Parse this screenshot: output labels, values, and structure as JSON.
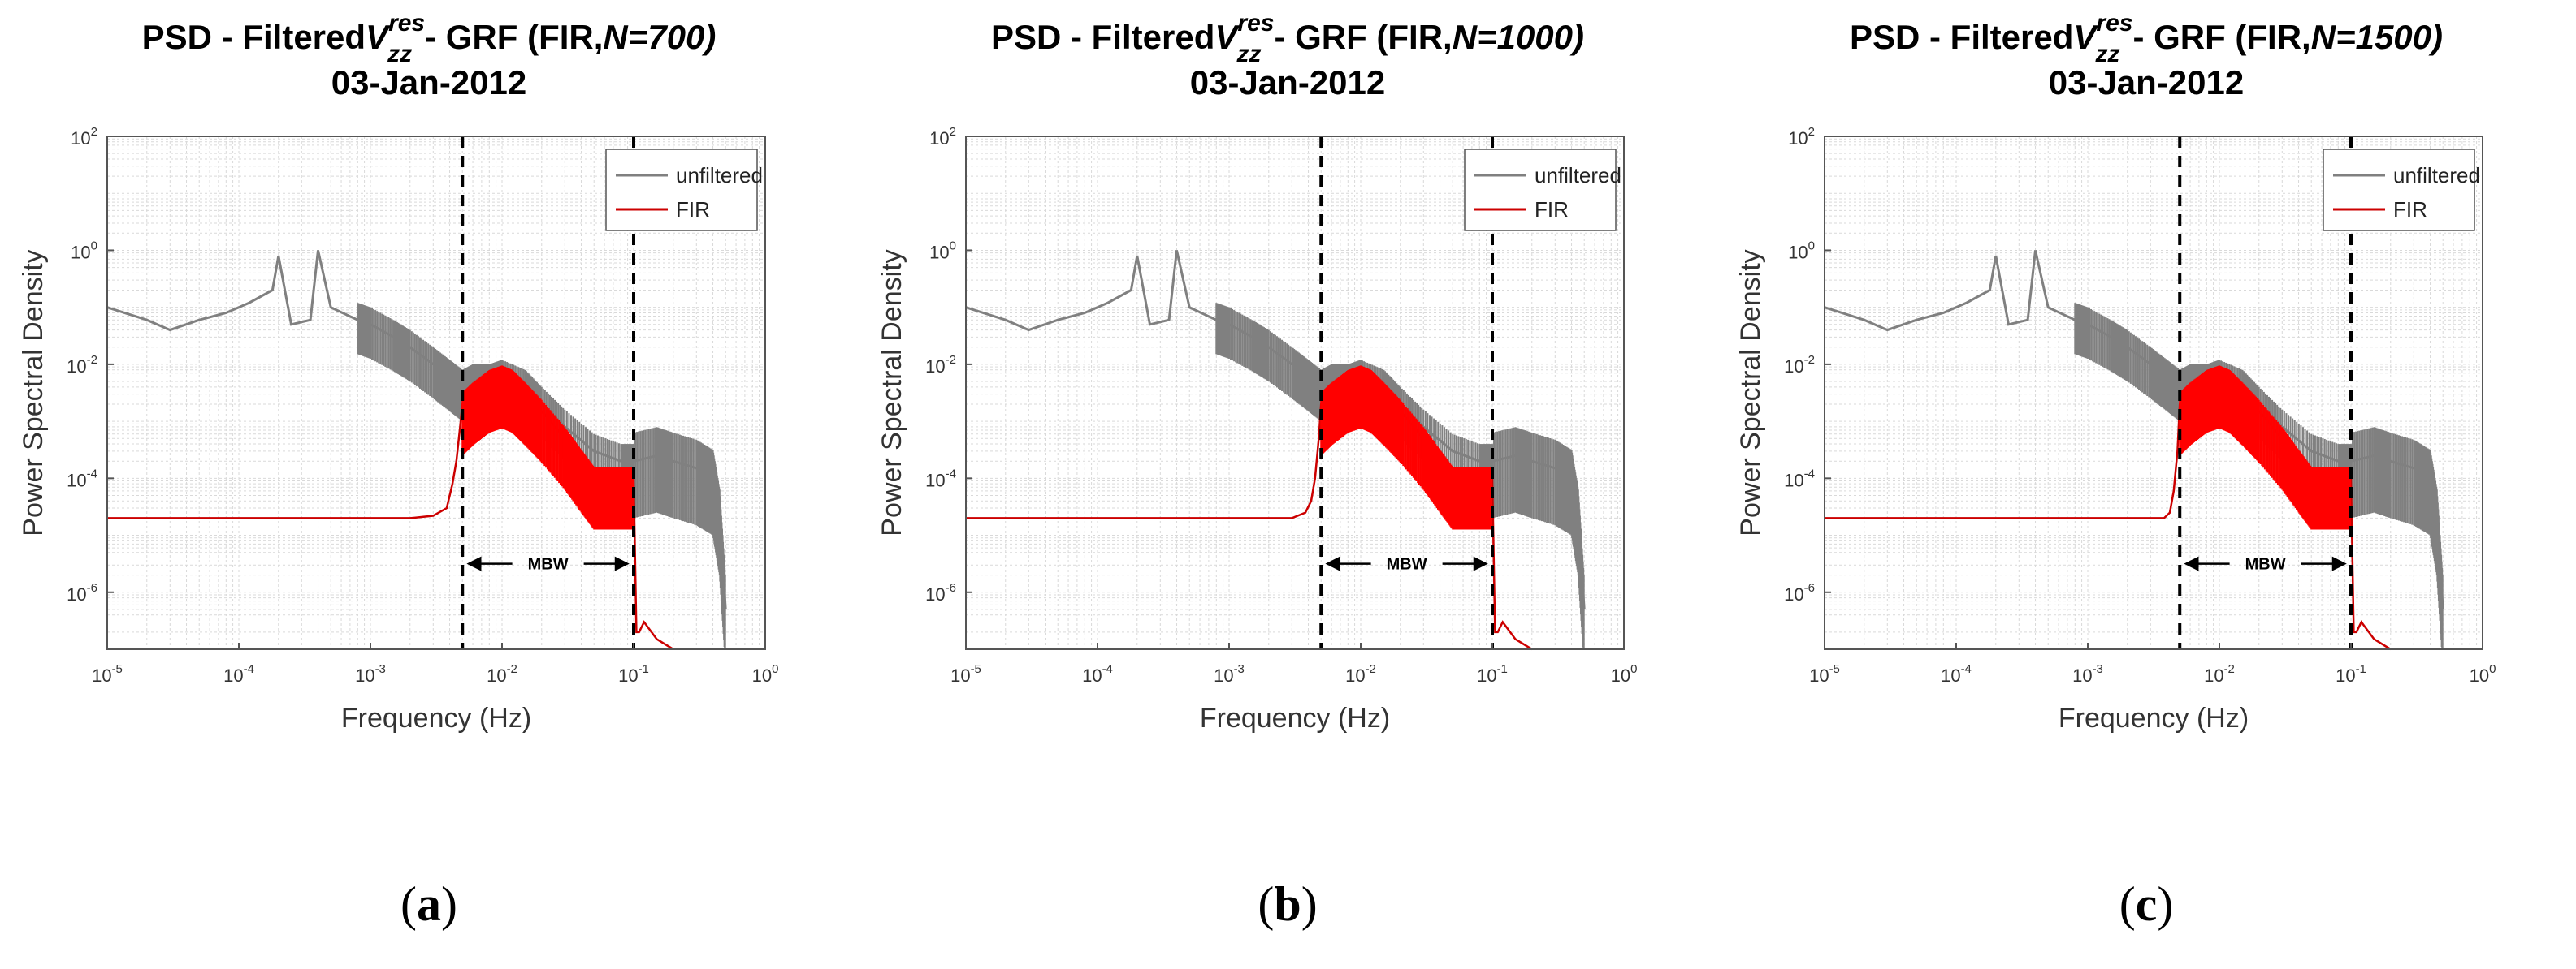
{
  "chart_data": [
    {
      "type": "line",
      "panel": "a",
      "title_prefix": "PSD - Filtered",
      "variable": "V",
      "superscript": "res",
      "subscript": "zz",
      "title_suffix_pre": "- GRF (FIR,",
      "title_suffix_em": "N=700)",
      "subtitle": "03-Jan-2012",
      "xlabel": "Frequency (Hz)",
      "ylabel": "Power Spectral Density",
      "xscale": "log",
      "yscale": "log",
      "xlim": [
        1e-05,
        1
      ],
      "ylim": [
        1e-07,
        100
      ],
      "x_ticks": [
        {
          "base": "10",
          "exp": "-5"
        },
        {
          "base": "10",
          "exp": "-4"
        },
        {
          "base": "10",
          "exp": "-3"
        },
        {
          "base": "10",
          "exp": "-2"
        },
        {
          "base": "10",
          "exp": "-1"
        },
        {
          "base": "10",
          "exp": "0"
        }
      ],
      "y_ticks": [
        {
          "base": "10",
          "exp": "-6"
        },
        {
          "base": "10",
          "exp": "-4"
        },
        {
          "base": "10",
          "exp": "-2"
        },
        {
          "base": "10",
          "exp": "0"
        },
        {
          "base": "10",
          "exp": "2"
        }
      ],
      "legend": [
        "unfiltered",
        "FIR"
      ],
      "legend_position": "top-right",
      "grid": true,
      "band_lines": [
        0.005,
        0.1
      ],
      "annotation": "MBW",
      "series": [
        {
          "name": "unfiltered",
          "color": "#808080",
          "x": [
            1e-05,
            2e-05,
            3e-05,
            5e-05,
            8e-05,
            0.00012,
            0.00018,
            0.0002,
            0.00025,
            0.00035,
            0.0004,
            0.0005,
            0.0008,
            0.001,
            0.0015,
            0.002,
            0.003,
            0.004,
            0.005,
            0.006,
            0.008,
            0.01,
            0.015,
            0.02,
            0.03,
            0.05,
            0.08,
            0.1,
            0.15,
            0.2,
            0.3,
            0.4,
            0.45,
            0.5
          ],
          "y": [
            0.1,
            0.06,
            0.04,
            0.06,
            0.08,
            0.12,
            0.2,
            0.8,
            0.05,
            0.06,
            1.0,
            0.1,
            0.06,
            0.05,
            0.03,
            0.02,
            0.01,
            0.006,
            0.004,
            0.005,
            0.005,
            0.006,
            0.004,
            0.002,
            0.0008,
            0.0003,
            0.0002,
            0.0002,
            0.00025,
            0.0002,
            0.00015,
            0.0001,
            2e-05,
            5e-07
          ]
        },
        {
          "name": "FIR",
          "color": "#cc0000",
          "x": [
            1e-05,
            0.0001,
            0.001,
            0.002,
            0.003,
            0.0038,
            0.0042,
            0.0045,
            0.0048,
            0.005,
            0.006,
            0.008,
            0.01,
            0.012,
            0.015,
            0.02,
            0.03,
            0.04,
            0.05,
            0.06,
            0.08,
            0.1,
            0.105,
            0.11,
            0.12,
            0.15,
            0.2
          ],
          "y": [
            2e-05,
            2e-05,
            2e-05,
            2e-05,
            2.2e-05,
            3e-05,
            8e-05,
            0.0002,
            0.0008,
            0.002,
            0.003,
            0.005,
            0.006,
            0.005,
            0.003,
            0.0015,
            0.0005,
            0.0002,
            0.0001,
            0.0001,
            0.0001,
            0.0001,
            2e-07,
            2e-07,
            3e-07,
            1.5e-07,
            1e-07
          ]
        }
      ],
      "caption": "a"
    },
    {
      "type": "line",
      "panel": "b",
      "title_prefix": "PSD - Filtered",
      "variable": "V",
      "superscript": "res",
      "subscript": "zz",
      "title_suffix_pre": "- GRF (FIR,",
      "title_suffix_em": "N=1000)",
      "subtitle": "03-Jan-2012",
      "xlabel": "Frequency (Hz)",
      "ylabel": "Power Spectral Density",
      "xscale": "log",
      "yscale": "log",
      "xlim": [
        1e-05,
        1
      ],
      "ylim": [
        1e-07,
        100
      ],
      "x_ticks": [
        {
          "base": "10",
          "exp": "-5"
        },
        {
          "base": "10",
          "exp": "-4"
        },
        {
          "base": "10",
          "exp": "-3"
        },
        {
          "base": "10",
          "exp": "-2"
        },
        {
          "base": "10",
          "exp": "-1"
        },
        {
          "base": "10",
          "exp": "0"
        }
      ],
      "y_ticks": [
        {
          "base": "10",
          "exp": "-6"
        },
        {
          "base": "10",
          "exp": "-4"
        },
        {
          "base": "10",
          "exp": "-2"
        },
        {
          "base": "10",
          "exp": "0"
        },
        {
          "base": "10",
          "exp": "2"
        }
      ],
      "legend": [
        "unfiltered",
        "FIR"
      ],
      "legend_position": "top-right",
      "grid": true,
      "band_lines": [
        0.005,
        0.1
      ],
      "annotation": "MBW",
      "series": [
        {
          "name": "unfiltered",
          "color": "#808080",
          "x": [
            1e-05,
            2e-05,
            3e-05,
            5e-05,
            8e-05,
            0.00012,
            0.00018,
            0.0002,
            0.00025,
            0.00035,
            0.0004,
            0.0005,
            0.0008,
            0.001,
            0.0015,
            0.002,
            0.003,
            0.004,
            0.005,
            0.006,
            0.008,
            0.01,
            0.015,
            0.02,
            0.03,
            0.05,
            0.08,
            0.1,
            0.15,
            0.2,
            0.3,
            0.4,
            0.45,
            0.5
          ],
          "y": [
            0.1,
            0.06,
            0.04,
            0.06,
            0.08,
            0.12,
            0.2,
            0.8,
            0.05,
            0.06,
            1.0,
            0.1,
            0.06,
            0.05,
            0.03,
            0.02,
            0.01,
            0.006,
            0.004,
            0.005,
            0.005,
            0.006,
            0.004,
            0.002,
            0.0008,
            0.0003,
            0.0002,
            0.0002,
            0.00025,
            0.0002,
            0.00015,
            0.0001,
            2e-05,
            5e-07
          ]
        },
        {
          "name": "FIR",
          "color": "#cc0000",
          "x": [
            1e-05,
            0.0001,
            0.001,
            0.002,
            0.003,
            0.0038,
            0.0042,
            0.0045,
            0.0048,
            0.005,
            0.006,
            0.008,
            0.01,
            0.012,
            0.015,
            0.02,
            0.03,
            0.04,
            0.05,
            0.06,
            0.08,
            0.1,
            0.105,
            0.11,
            0.12,
            0.15,
            0.2
          ],
          "y": [
            2e-05,
            2e-05,
            2e-05,
            2e-05,
            2e-05,
            2.5e-05,
            4e-05,
            0.0001,
            0.0005,
            0.002,
            0.003,
            0.005,
            0.006,
            0.005,
            0.003,
            0.0015,
            0.0005,
            0.0002,
            0.0001,
            0.0001,
            0.0001,
            0.0001,
            2e-07,
            2e-07,
            3e-07,
            1.5e-07,
            1e-07
          ]
        }
      ],
      "caption": "b"
    },
    {
      "type": "line",
      "panel": "c",
      "title_prefix": "PSD - Filtered",
      "variable": "V",
      "superscript": "res",
      "subscript": "zz",
      "title_suffix_pre": "- GRF (FIR,",
      "title_suffix_em": "N=1500)",
      "subtitle": "03-Jan-2012",
      "xlabel": "Frequency (Hz)",
      "ylabel": "Power Spectral Density",
      "xscale": "log",
      "yscale": "log",
      "xlim": [
        1e-05,
        1
      ],
      "ylim": [
        1e-07,
        100
      ],
      "x_ticks": [
        {
          "base": "10",
          "exp": "-5"
        },
        {
          "base": "10",
          "exp": "-4"
        },
        {
          "base": "10",
          "exp": "-3"
        },
        {
          "base": "10",
          "exp": "-2"
        },
        {
          "base": "10",
          "exp": "-1"
        },
        {
          "base": "10",
          "exp": "0"
        }
      ],
      "y_ticks": [
        {
          "base": "10",
          "exp": "-6"
        },
        {
          "base": "10",
          "exp": "-4"
        },
        {
          "base": "10",
          "exp": "-2"
        },
        {
          "base": "10",
          "exp": "0"
        },
        {
          "base": "10",
          "exp": "2"
        }
      ],
      "legend": [
        "unfiltered",
        "FIR"
      ],
      "legend_position": "top-right",
      "grid": true,
      "band_lines": [
        0.005,
        0.1
      ],
      "annotation": "MBW",
      "series": [
        {
          "name": "unfiltered",
          "color": "#808080",
          "x": [
            1e-05,
            2e-05,
            3e-05,
            5e-05,
            8e-05,
            0.00012,
            0.00018,
            0.0002,
            0.00025,
            0.00035,
            0.0004,
            0.0005,
            0.0008,
            0.001,
            0.0015,
            0.002,
            0.003,
            0.004,
            0.005,
            0.006,
            0.008,
            0.01,
            0.015,
            0.02,
            0.03,
            0.05,
            0.08,
            0.1,
            0.15,
            0.2,
            0.3,
            0.4,
            0.45,
            0.5
          ],
          "y": [
            0.1,
            0.06,
            0.04,
            0.06,
            0.08,
            0.12,
            0.2,
            0.8,
            0.05,
            0.06,
            1.0,
            0.1,
            0.06,
            0.05,
            0.03,
            0.02,
            0.01,
            0.006,
            0.004,
            0.005,
            0.005,
            0.006,
            0.004,
            0.002,
            0.0008,
            0.0003,
            0.0002,
            0.0002,
            0.00025,
            0.0002,
            0.00015,
            0.0001,
            2e-05,
            5e-07
          ]
        },
        {
          "name": "FIR",
          "color": "#cc0000",
          "x": [
            1e-05,
            0.0001,
            0.001,
            0.002,
            0.003,
            0.0038,
            0.0042,
            0.0045,
            0.0048,
            0.005,
            0.006,
            0.008,
            0.01,
            0.012,
            0.015,
            0.02,
            0.03,
            0.04,
            0.05,
            0.06,
            0.08,
            0.1,
            0.105,
            0.11,
            0.12,
            0.15,
            0.2
          ],
          "y": [
            2e-05,
            2e-05,
            2e-05,
            2e-05,
            2e-05,
            2e-05,
            2.5e-05,
            6e-05,
            0.0003,
            0.002,
            0.003,
            0.005,
            0.006,
            0.005,
            0.003,
            0.0015,
            0.0005,
            0.0002,
            0.0001,
            0.0001,
            0.0001,
            0.0001,
            2e-07,
            2e-07,
            3e-07,
            1.5e-07,
            1e-07
          ]
        }
      ],
      "caption": "c"
    }
  ],
  "colors": {
    "unfiltered": "#808080",
    "fir_line": "#cc0000",
    "fir_fill": "#ff0000",
    "grid": "#d9d9d9"
  }
}
